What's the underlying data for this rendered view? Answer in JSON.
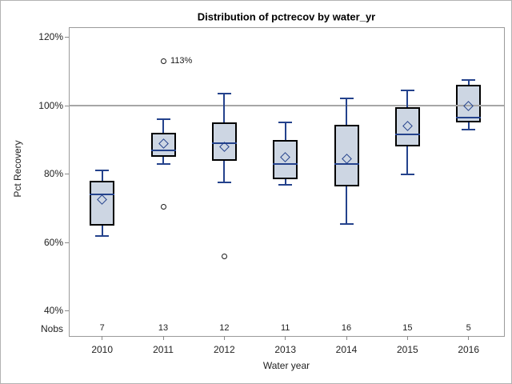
{
  "title": "Distribution of pctrecov by water_yr",
  "chart_data": {
    "type": "boxplot",
    "title": "Distribution of pctrecov by water_yr",
    "xlabel": "Water year",
    "ylabel": "Pct Recovery",
    "nobs_label": "Nobs",
    "ylim": [
      32.75,
      122.9
    ],
    "y_ticks": [
      {
        "value": 120,
        "label": "120%"
      },
      {
        "value": 100,
        "label": "100%"
      },
      {
        "value": 80,
        "label": "80%"
      },
      {
        "value": 60,
        "label": "60%"
      },
      {
        "value": 40,
        "label": "40%"
      }
    ],
    "reference_line": 100,
    "grid": "off",
    "legend": "none",
    "categories": [
      "2010",
      "2011",
      "2012",
      "2013",
      "2014",
      "2015",
      "2016"
    ],
    "nobs": [
      7,
      13,
      12,
      11,
      16,
      15,
      5
    ],
    "series": [
      {
        "year": "2010",
        "nobs": 7,
        "whisker_low": 62,
        "q1": 65,
        "median": 74,
        "q3": 78,
        "whisker_high": 81,
        "mean": 72.5,
        "outliers": []
      },
      {
        "year": "2011",
        "nobs": 13,
        "whisker_low": 83,
        "q1": 85,
        "median": 87,
        "q3": 92,
        "whisker_high": 96,
        "mean": 89,
        "outliers": [
          {
            "value": 113,
            "label": "113%"
          },
          {
            "value": 70.5,
            "label": ""
          }
        ]
      },
      {
        "year": "2012",
        "nobs": 12,
        "whisker_low": 77.5,
        "q1": 84,
        "median": 89,
        "q3": 95,
        "whisker_high": 103.5,
        "mean": 88,
        "outliers": [
          {
            "value": 56,
            "label": ""
          }
        ]
      },
      {
        "year": "2013",
        "nobs": 11,
        "whisker_low": 77,
        "q1": 78.5,
        "median": 83,
        "q3": 90,
        "whisker_high": 95,
        "mean": 85,
        "outliers": []
      },
      {
        "year": "2014",
        "nobs": 16,
        "whisker_low": 65.5,
        "q1": 76.5,
        "median": 83,
        "q3": 94.5,
        "whisker_high": 102,
        "mean": 84.5,
        "outliers": []
      },
      {
        "year": "2015",
        "nobs": 15,
        "whisker_low": 80,
        "q1": 88,
        "median": 91.5,
        "q3": 99.5,
        "whisker_high": 104.5,
        "mean": 94,
        "outliers": []
      },
      {
        "year": "2016",
        "nobs": 5,
        "whisker_low": 93,
        "q1": 95,
        "median": 96.5,
        "q3": 106,
        "whisker_high": 107.5,
        "mean": 100,
        "outliers": []
      }
    ],
    "colors": {
      "box_fill": "#cdd6e3",
      "box_border": "#000000",
      "line_blue": "#24428c",
      "outlier": "#1a1a1a",
      "reference_line": "#a6a6a6",
      "frame": "#9b9b9b",
      "tick": "#8a8a8a",
      "text": "#222222"
    }
  }
}
